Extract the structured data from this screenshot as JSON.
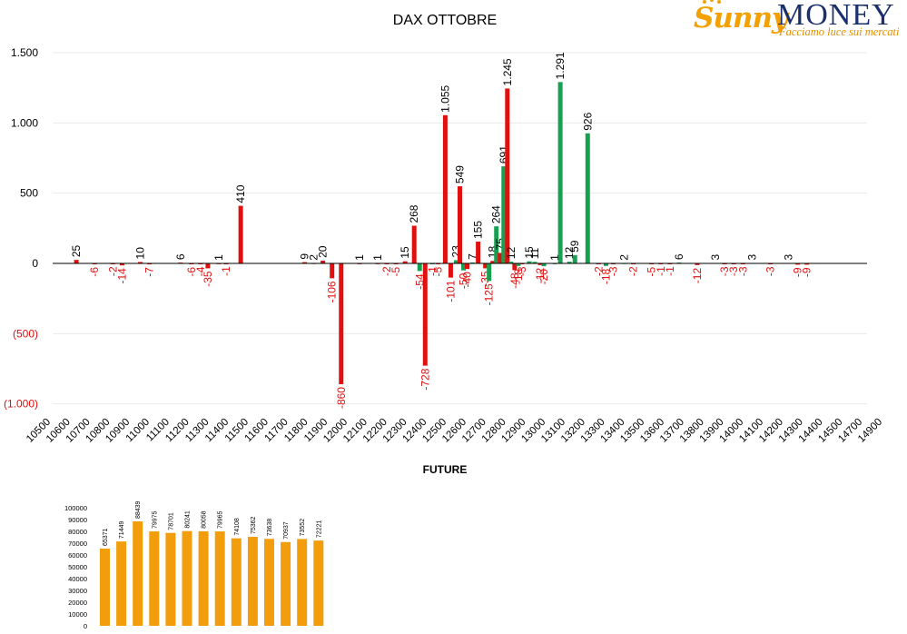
{
  "logo": {
    "brand_left": "Sunny",
    "brand_right": "MONEY",
    "tagline": "Facciamo luce sui mercati"
  },
  "colors": {
    "positive": "#16a050",
    "negative": "#e01010",
    "future": "#f29e0c",
    "axis": "#000000",
    "grid": "#e9e9e9",
    "negative_label": "#e01010"
  },
  "chart_data": [
    {
      "type": "bar",
      "title": "DAX OTTOBRE",
      "xlabel": "",
      "ylabel": "",
      "ylim": [
        -1000,
        1500
      ],
      "ytick_labels": [
        "1.500",
        "1.000",
        "500",
        "0",
        "(500)",
        "(1.000)"
      ],
      "ytick_values": [
        1500,
        1000,
        500,
        0,
        -500,
        -1000
      ],
      "categories": [
        "10500",
        "10600",
        "10700",
        "10800",
        "10900",
        "11000",
        "11100",
        "11200",
        "11300",
        "11400",
        "11500",
        "11600",
        "11700",
        "11800",
        "11900",
        "12000",
        "12100",
        "12200",
        "12300",
        "12400",
        "12500",
        "12600",
        "12700",
        "12800",
        "12900",
        "13000",
        "13100",
        "13200",
        "13300",
        "13400",
        "13500",
        "13600",
        "13700",
        "13800",
        "13900",
        "14000",
        "14100",
        "14200",
        "14300",
        "14400",
        "14500",
        "14700",
        "14900"
      ],
      "bars": [
        {
          "x": 10600,
          "value": 25,
          "label": "25",
          "series": "red"
        },
        {
          "x": 10700,
          "value": -6,
          "label": "-6",
          "series": "red"
        },
        {
          "x": 10800,
          "value": -2,
          "label": "-2",
          "series": "red"
        },
        {
          "x": 10850,
          "value": -14,
          "label": "-14",
          "series": "red"
        },
        {
          "x": 10950,
          "value": 10,
          "label": "10",
          "series": "red"
        },
        {
          "x": 11000,
          "value": -7,
          "label": "-7",
          "series": "red"
        },
        {
          "x": 11170,
          "value": 6,
          "label": "6",
          "series": "red"
        },
        {
          "x": 11230,
          "value": -6,
          "label": "-6",
          "series": "red"
        },
        {
          "x": 11280,
          "value": -4,
          "label": "-4",
          "series": "red"
        },
        {
          "x": 11320,
          "value": -35,
          "label": "-35",
          "series": "red"
        },
        {
          "x": 11380,
          "value": 1,
          "label": "1",
          "series": "red"
        },
        {
          "x": 11420,
          "value": -1,
          "label": "-1",
          "series": "red"
        },
        {
          "x": 11500,
          "value": 410,
          "label": "410",
          "series": "red"
        },
        {
          "x": 11850,
          "value": 9,
          "label": "9",
          "series": "red"
        },
        {
          "x": 11900,
          "value": 2,
          "label": "2",
          "series": "red"
        },
        {
          "x": 11950,
          "value": 20,
          "label": "20",
          "series": "red"
        },
        {
          "x": 12000,
          "value": -106,
          "label": "-106",
          "series": "red"
        },
        {
          "x": 12050,
          "value": -860,
          "label": "-860",
          "series": "red"
        },
        {
          "x": 12150,
          "value": 1,
          "label": "1",
          "series": "red"
        },
        {
          "x": 12250,
          "value": 1,
          "label": "1",
          "series": "red"
        },
        {
          "x": 12300,
          "value": -2,
          "label": "-2",
          "series": "red"
        },
        {
          "x": 12350,
          "value": -5,
          "label": "-5",
          "series": "red"
        },
        {
          "x": 12400,
          "value": 15,
          "label": "15",
          "series": "red"
        },
        {
          "x": 12450,
          "value": 268,
          "label": "268",
          "series": "red"
        },
        {
          "x": 12480,
          "value": -54,
          "label": "-54",
          "series": "green"
        },
        {
          "x": 12510,
          "value": -728,
          "label": "-728",
          "series": "red"
        },
        {
          "x": 12550,
          "value": -1,
          "label": "-1",
          "series": "green"
        },
        {
          "x": 12580,
          "value": -5,
          "label": "-5",
          "series": "red"
        },
        {
          "x": 12620,
          "value": 1055,
          "label": "1.055",
          "series": "red"
        },
        {
          "x": 12650,
          "value": -101,
          "label": "-101",
          "series": "red"
        },
        {
          "x": 12680,
          "value": 23,
          "label": "23",
          "series": "green"
        },
        {
          "x": 12700,
          "value": 549,
          "label": "549",
          "series": "red"
        },
        {
          "x": 12720,
          "value": -50,
          "label": "-50",
          "series": "green"
        },
        {
          "x": 12740,
          "value": -40,
          "label": "-40",
          "series": "red"
        },
        {
          "x": 12770,
          "value": 7,
          "label": "7",
          "series": "green"
        },
        {
          "x": 12800,
          "value": 155,
          "label": "155",
          "series": "red"
        },
        {
          "x": 12840,
          "value": -35,
          "label": "-35",
          "series": "red"
        },
        {
          "x": 12860,
          "value": -125,
          "label": "-125",
          "series": "green"
        },
        {
          "x": 12880,
          "value": 18,
          "label": "18",
          "series": "red"
        },
        {
          "x": 12900,
          "value": 264,
          "label": "264",
          "series": "green"
        },
        {
          "x": 12920,
          "value": 75,
          "label": "75",
          "series": "red"
        },
        {
          "x": 12940,
          "value": 691,
          "label": "691",
          "series": "green"
        },
        {
          "x": 12960,
          "value": 1245,
          "label": "1.245",
          "series": "red"
        },
        {
          "x": 12980,
          "value": 12,
          "label": "12",
          "series": "green"
        },
        {
          "x": 13000,
          "value": -48,
          "label": "-48",
          "series": "red"
        },
        {
          "x": 13020,
          "value": -18,
          "label": "-18",
          "series": "green"
        },
        {
          "x": 13040,
          "value": -3,
          "label": "-3",
          "series": "red"
        },
        {
          "x": 13080,
          "value": 15,
          "label": "15",
          "series": "green"
        },
        {
          "x": 13110,
          "value": 11,
          "label": "11",
          "series": "green"
        },
        {
          "x": 13140,
          "value": -12,
          "label": "-12",
          "series": "red"
        },
        {
          "x": 13160,
          "value": -20,
          "label": "-20",
          "series": "green"
        },
        {
          "x": 13220,
          "value": 1,
          "label": "1",
          "series": "green"
        },
        {
          "x": 13250,
          "value": 1291,
          "label": "1.291",
          "series": "green"
        },
        {
          "x": 13300,
          "value": 12,
          "label": "12",
          "series": "green"
        },
        {
          "x": 13330,
          "value": 59,
          "label": "59",
          "series": "green"
        },
        {
          "x": 13400,
          "value": 926,
          "label": "926",
          "series": "green"
        },
        {
          "x": 13460,
          "value": -2,
          "label": "-2",
          "series": "red"
        },
        {
          "x": 13500,
          "value": -18,
          "label": "-18",
          "series": "green"
        },
        {
          "x": 13540,
          "value": -3,
          "label": "-3",
          "series": "red"
        },
        {
          "x": 13600,
          "value": 2,
          "label": "2",
          "series": "green"
        },
        {
          "x": 13650,
          "value": -2,
          "label": "-2",
          "series": "red"
        },
        {
          "x": 13750,
          "value": -5,
          "label": "-5",
          "series": "red"
        },
        {
          "x": 13800,
          "value": -1,
          "label": "-1",
          "series": "red"
        },
        {
          "x": 13850,
          "value": -1,
          "label": "-1",
          "series": "red"
        },
        {
          "x": 13900,
          "value": 6,
          "label": "6",
          "series": "green"
        },
        {
          "x": 14000,
          "value": -12,
          "label": "-12",
          "series": "red"
        },
        {
          "x": 14100,
          "value": 3,
          "label": "3",
          "series": "green"
        },
        {
          "x": 14150,
          "value": -3,
          "label": "-3",
          "series": "red"
        },
        {
          "x": 14200,
          "value": -3,
          "label": "-3",
          "series": "red"
        },
        {
          "x": 14250,
          "value": -3,
          "label": "-3",
          "series": "red"
        },
        {
          "x": 14300,
          "value": 3,
          "label": "3",
          "series": "green"
        },
        {
          "x": 14400,
          "value": -3,
          "label": "-3",
          "series": "red"
        },
        {
          "x": 14500,
          "value": 3,
          "label": "3",
          "series": "green"
        },
        {
          "x": 14550,
          "value": -9,
          "label": "-9",
          "series": "red"
        },
        {
          "x": 14600,
          "value": -9,
          "label": "-9",
          "series": "red"
        }
      ],
      "grid": true,
      "legend": "none"
    },
    {
      "type": "bar",
      "title": "FUTURE",
      "xlabel": "",
      "ylabel": "",
      "ylim": [
        0,
        100000
      ],
      "ytick_labels": [
        "100000",
        "90000",
        "80000",
        "70000",
        "60000",
        "50000",
        "40000",
        "30000",
        "20000",
        "10000",
        "0"
      ],
      "values": [
        65371,
        71449,
        88439,
        79975,
        78701,
        80241,
        80058,
        79965,
        74108,
        75362,
        73638,
        70937,
        73552,
        72221
      ],
      "labels": [
        "65371",
        "71449",
        "88439",
        "79975",
        "78701",
        "80241",
        "80058",
        "79965",
        "74108",
        "75362",
        "73638",
        "70937",
        "73552",
        "72221"
      ],
      "grid": false,
      "legend": "none"
    }
  ]
}
